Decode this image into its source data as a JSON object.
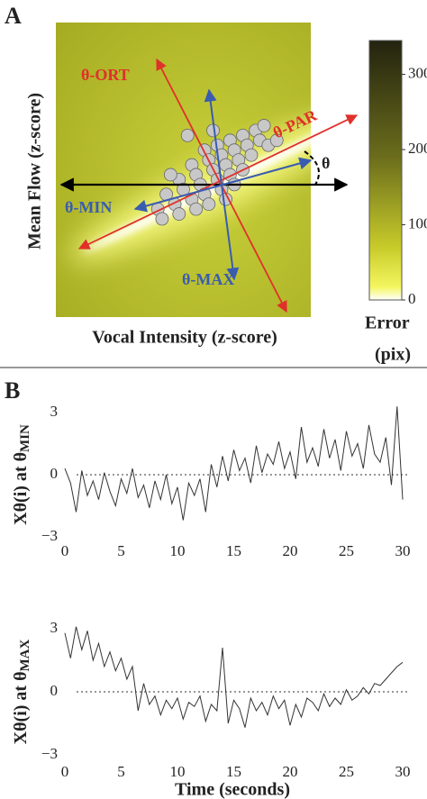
{
  "chart_data": [
    {
      "type": "scatter",
      "panel_label": "A",
      "xlabel": "Vocal Intensity (z-score)",
      "ylabel": "Mean Flow (z-score)",
      "xlim": [
        -3,
        3
      ],
      "ylim": [
        -3,
        3
      ],
      "color": "#c8c8c8",
      "x": [
        0.5,
        0.8,
        1.1,
        1.4,
        1.7,
        0.2,
        0.6,
        0.9,
        1.2,
        1.5,
        1.8,
        -0.1,
        0.3,
        0.7,
        1.0,
        1.3,
        1.6,
        2.0,
        -0.4,
        0.0,
        0.4,
        0.8,
        1.1,
        1.4,
        -0.6,
        -0.2,
        0.2,
        0.5,
        0.9,
        1.2,
        -0.5,
        -0.1,
        0.3,
        0.6,
        2.2,
        1.9,
        0.1,
        -0.3,
        0.7,
        1.0
      ],
      "y": [
        0.4,
        0.5,
        0.6,
        0.7,
        0.8,
        0.1,
        0.2,
        0.3,
        0.4,
        0.5,
        0.6,
        -0.2,
        -0.1,
        0.0,
        0.1,
        0.2,
        0.3,
        0.5,
        -0.5,
        -0.4,
        -0.3,
        -0.2,
        -0.1,
        0.0,
        -0.8,
        -0.7,
        -0.6,
        -0.5,
        -0.4,
        -0.3,
        -1.0,
        -0.9,
        -0.8,
        -0.7,
        0.6,
        0.9,
        0.7,
        -0.1,
        0.8,
        -0.6
      ],
      "annotations": {
        "ort": "θ-ORT",
        "par": "θ-PAR",
        "min": "θ-MIN",
        "max": "θ-MAX",
        "theta": "θ"
      },
      "colorbar": {
        "label": [
          "Error",
          "(pix)"
        ],
        "lim": [
          0,
          345
        ],
        "ticks": [
          0,
          100,
          200,
          300
        ]
      }
    },
    {
      "type": "line",
      "panel_label": "B",
      "ylabel": "Xθ(i) at θ",
      "ylabel_subscript": "MIN",
      "color": "#333333",
      "xlim": [
        0,
        30
      ],
      "ylim": [
        -3,
        3
      ],
      "xticks": [
        0,
        5,
        10,
        15,
        20,
        25,
        30
      ],
      "yticks": [
        3,
        0,
        {
          "value": -3,
          "label": "−3"
        }
      ],
      "reference_line": 0,
      "x": [
        0,
        0.5,
        1,
        1.5,
        2,
        2.5,
        3,
        3.5,
        4,
        4.5,
        5,
        5.5,
        6,
        6.5,
        7,
        7.5,
        8,
        8.5,
        9,
        9.5,
        10,
        10.5,
        11,
        11.5,
        12,
        12.5,
        13,
        13.5,
        14,
        14.5,
        15,
        15.5,
        16,
        16.5,
        17,
        17.5,
        18,
        18.5,
        19,
        19.5,
        20,
        20.5,
        21,
        21.5,
        22,
        22.5,
        23,
        23.5,
        24,
        24.5,
        25,
        25.5,
        26,
        26.5,
        27,
        27.5,
        28,
        28.5,
        29,
        29.5,
        30
      ],
      "values": [
        0.3,
        -0.4,
        -1.8,
        0.2,
        -1.0,
        -0.3,
        -1.2,
        0.1,
        -0.8,
        -1.5,
        -0.2,
        -0.9,
        0.3,
        -1.1,
        -0.5,
        -1.6,
        -0.3,
        -1.2,
        0.0,
        -1.4,
        -0.6,
        -2.2,
        -0.4,
        -1.0,
        -0.2,
        -1.8,
        0.5,
        -0.6,
        0.9,
        -0.3,
        1.2,
        0.2,
        0.8,
        -0.4,
        1.4,
        0.1,
        1.0,
        0.5,
        1.6,
        0.3,
        1.1,
        -0.2,
        2.3,
        0.6,
        1.3,
        0.4,
        2.2,
        0.8,
        1.7,
        0.2,
        2.1,
        0.9,
        1.5,
        0.3,
        2.4,
        1.0,
        0.6,
        1.8,
        -0.5,
        3.3,
        -1.2
      ]
    },
    {
      "type": "line",
      "ylabel": "Xθ(i) at θ",
      "ylabel_subscript": "MAX",
      "xlabel": "Time (seconds)",
      "color": "#333333",
      "xlim": [
        0,
        30
      ],
      "ylim": [
        -3,
        3
      ],
      "xticks": [
        0,
        5,
        10,
        15,
        20,
        25,
        30
      ],
      "yticks": [
        3,
        0,
        {
          "value": -3,
          "label": "−3"
        }
      ],
      "reference_line": 0,
      "x": [
        0,
        0.5,
        1,
        1.5,
        2,
        2.5,
        3,
        3.5,
        4,
        4.5,
        5,
        5.5,
        6,
        6.5,
        7,
        7.5,
        8,
        8.5,
        9,
        9.5,
        10,
        10.5,
        11,
        11.5,
        12,
        12.5,
        13,
        13.5,
        14,
        14.5,
        15,
        15.5,
        16,
        16.5,
        17,
        17.5,
        18,
        18.5,
        19,
        19.5,
        20,
        20.5,
        21,
        21.5,
        22,
        22.5,
        23,
        23.5,
        24,
        24.5,
        25,
        25.5,
        26,
        26.5,
        27,
        27.5,
        28,
        28.5,
        29,
        29.5,
        30
      ],
      "values": [
        2.8,
        1.6,
        3.1,
        2.0,
        2.9,
        1.5,
        2.3,
        1.2,
        1.9,
        1.0,
        1.6,
        0.6,
        1.2,
        -0.9,
        0.4,
        -0.6,
        -0.2,
        -1.1,
        -0.4,
        -0.8,
        -0.3,
        -1.3,
        -0.5,
        -0.7,
        -0.2,
        -1.4,
        -0.6,
        -0.9,
        2.1,
        -1.5,
        -0.4,
        -0.8,
        -1.7,
        -0.3,
        -0.9,
        -0.5,
        -1.1,
        -0.2,
        -0.8,
        -0.4,
        -1.6,
        -0.6,
        -1.2,
        -0.3,
        -0.5,
        -0.9,
        -0.1,
        -0.7,
        -0.3,
        -0.6,
        0.1,
        -0.4,
        -0.2,
        0.2,
        -0.1,
        0.4,
        0.3,
        0.6,
        0.9,
        1.2,
        1.4
      ]
    }
  ]
}
